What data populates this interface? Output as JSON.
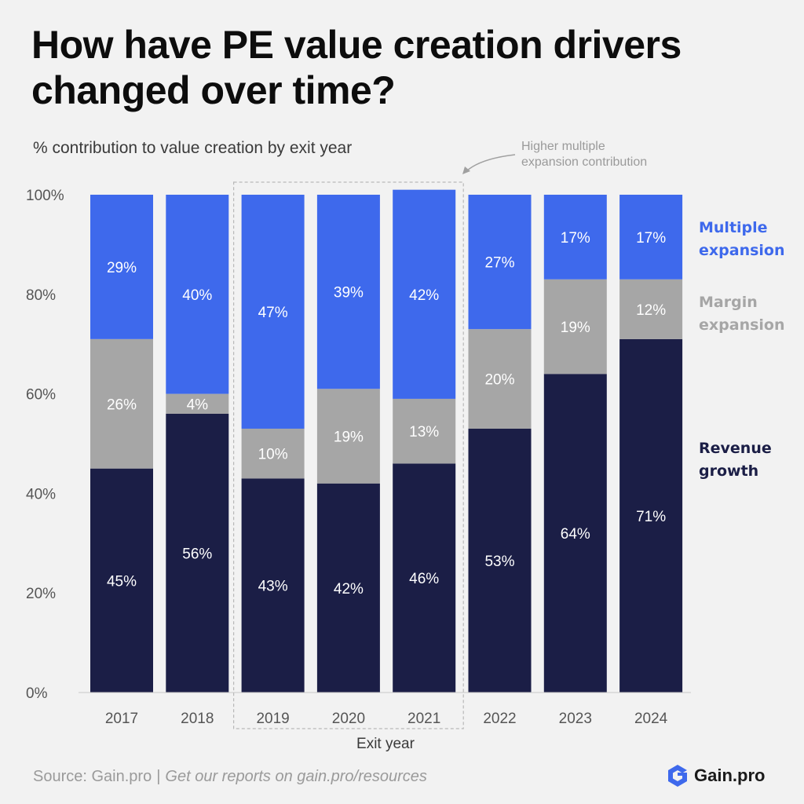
{
  "colors": {
    "revenue": "#1b1e46",
    "margin": "#a6a6a6",
    "multiple": "#3e69ec",
    "axis_text": "#555555",
    "highlight_box": "#b8b8b8"
  },
  "annotation": {
    "line1": "Higher multiple",
    "line2": "expansion contribution"
  },
  "legend": {
    "multiple_line1": "Multiple",
    "multiple_line2": "expansion",
    "margin_line1": "Margin",
    "margin_line2": "expansion",
    "revenue_line1": "Revenue",
    "revenue_line2": "growth"
  },
  "footer": {
    "source": "Source: Gain.pro",
    "separator": "|",
    "cta": "Get our reports on gain.pro/resources",
    "brand": "Gain.pro",
    "brand_icon": "gain-pro-logo-icon"
  },
  "chart_data": {
    "type": "bar",
    "stacked": true,
    "title": "How have PE value creation drivers changed over time?",
    "subtitle": "% contribution to value creation by exit year",
    "xlabel": "Exit year",
    "ylabel": "",
    "ylim": [
      0,
      100
    ],
    "yticks": [
      "0%",
      "20%",
      "40%",
      "60%",
      "80%",
      "100%"
    ],
    "categories": [
      "2017",
      "2018",
      "2019",
      "2020",
      "2021",
      "2022",
      "2023",
      "2024"
    ],
    "highlight_categories": [
      "2019",
      "2020",
      "2021"
    ],
    "series": [
      {
        "name": "Revenue growth",
        "values": [
          45,
          56,
          43,
          42,
          46,
          53,
          64,
          71
        ],
        "labels": [
          "45%",
          "56%",
          "43%",
          "42%",
          "46%",
          "53%",
          "64%",
          "71%"
        ]
      },
      {
        "name": "Margin expansion",
        "values": [
          26,
          4,
          10,
          19,
          13,
          20,
          19,
          12
        ],
        "labels": [
          "26%",
          "4%",
          "10%",
          "19%",
          "13%",
          "20%",
          "19%",
          "12%"
        ]
      },
      {
        "name": "Multiple expansion",
        "values": [
          29,
          40,
          47,
          39,
          42,
          27,
          17,
          17
        ],
        "labels": [
          "29%",
          "40%",
          "47%",
          "39%",
          "42%",
          "27%",
          "17%",
          "17%"
        ]
      }
    ]
  }
}
